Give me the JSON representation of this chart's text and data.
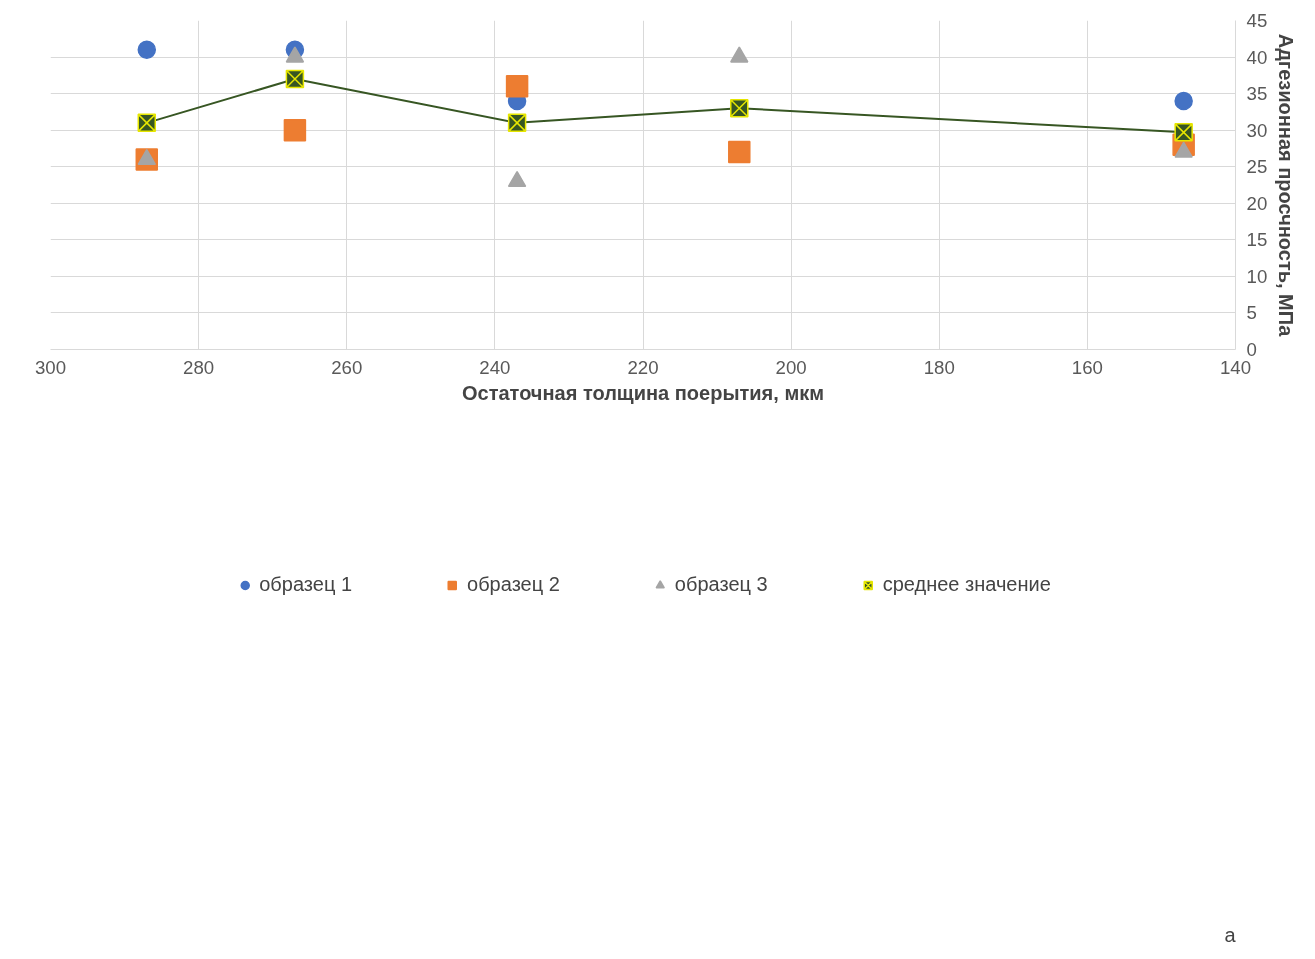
{
  "chart_data": {
    "type": "scatter",
    "xlabel": "Остаточная толщина поерытия, мкм",
    "ylabel": "Адгезионная просчность, МПа",
    "x": [
      287,
      267,
      237,
      207,
      147
    ],
    "series": [
      {
        "name": "образец 1",
        "color": "#4472c4",
        "marker": "circle",
        "values": [
          41,
          41,
          34,
          null,
          34
        ]
      },
      {
        "name": "образец 2",
        "color": "#ed7d31",
        "marker": "square",
        "values": [
          26,
          30,
          36,
          27,
          28
        ]
      },
      {
        "name": "образец 3",
        "color": "#a5a5a5",
        "marker": "triangle",
        "values": [
          26,
          40,
          23,
          40,
          27
        ]
      },
      {
        "name": "среднее значение",
        "color": "#375623",
        "marker": "cross",
        "type": "line",
        "values": [
          31,
          37,
          31,
          33,
          29.7
        ]
      }
    ],
    "xlim": [
      300,
      140
    ],
    "xticks": [
      300,
      280,
      260,
      240,
      220,
      200,
      180,
      160,
      140
    ],
    "ylim": [
      0,
      45
    ],
    "yticks": [
      0,
      5,
      10,
      15,
      20,
      25,
      30,
      35,
      40,
      45
    ],
    "grid": true,
    "legend": "bottom",
    "annotations": [
      "а"
    ]
  }
}
